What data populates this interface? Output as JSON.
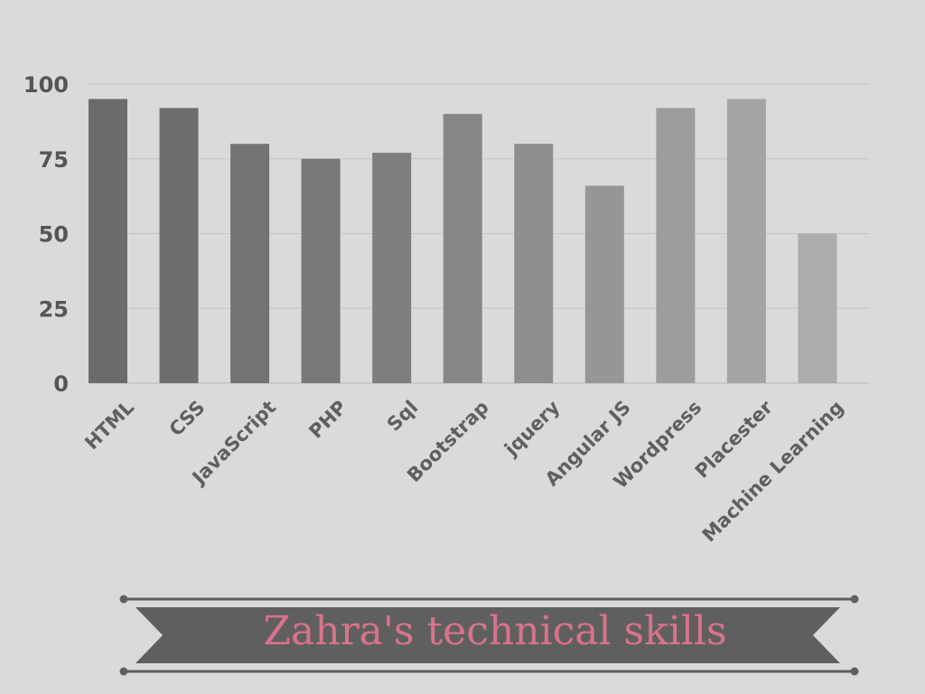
{
  "chart_data": {
    "type": "bar",
    "title": "Zahra's technical skills",
    "xlabel": "",
    "ylabel": "",
    "ylim": [
      0,
      100
    ],
    "yticks": [
      0,
      25,
      50,
      75,
      100
    ],
    "grid": true,
    "categories": [
      "HTML",
      "CSS",
      "JavaScript",
      "PHP",
      "Sql",
      "Bootstrap",
      "jquery",
      "Angular JS",
      "Wordpress",
      "Placester",
      "Machine Learning"
    ],
    "values": [
      95,
      92,
      80,
      75,
      77,
      90,
      80,
      66,
      92,
      95,
      50
    ],
    "colors": [
      "#6b6b6b",
      "#6e6e6e",
      "#737373",
      "#787878",
      "#7e7e7e",
      "#868686",
      "#8e8e8e",
      "#969696",
      "#9d9d9d",
      "#a4a4a4",
      "#acacac"
    ]
  },
  "banner": {
    "color": "#5f5f5f",
    "text_color": "#d9738a"
  }
}
